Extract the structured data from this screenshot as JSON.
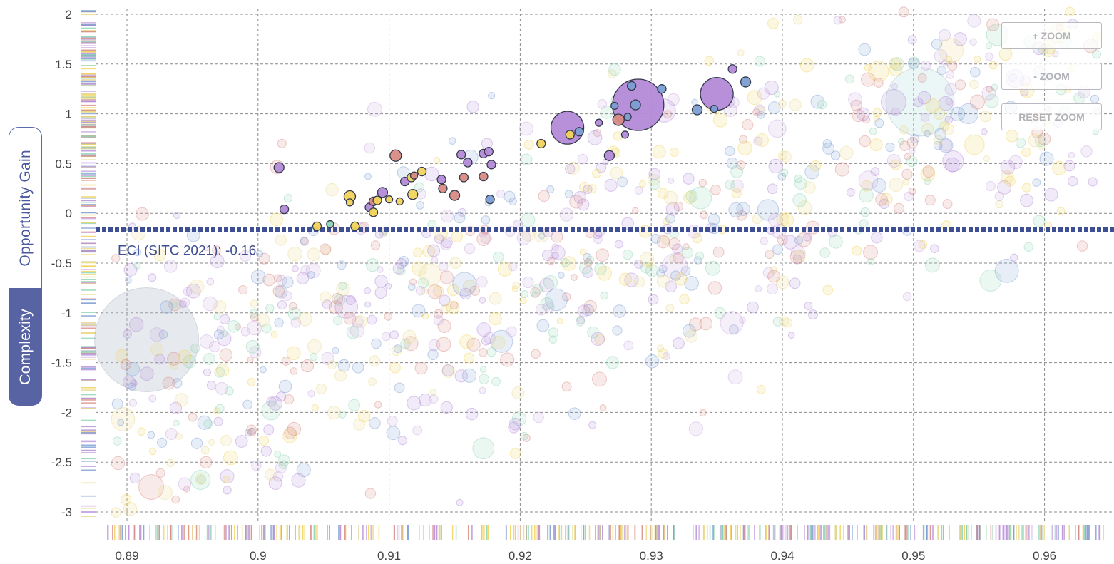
{
  "side_tabs": {
    "opportunity_gain": "Opportunity Gain",
    "complexity": "Complexity"
  },
  "zoom": {
    "zoom_in": "+ ZOOM",
    "zoom_out": "- ZOOM",
    "reset": "RESET ZOOM"
  },
  "colors": {
    "purple": "#b48ad8",
    "blue": "#7c9ed3",
    "yellow": "#f1d35a",
    "salmon": "#d88b84",
    "green": "#8ed4b4",
    "eci_line": "#3f4f93",
    "tab_active": "#5763a3"
  },
  "chart_data": {
    "type": "scatter",
    "x_ticks": [
      "0.89",
      "0.9",
      "0.91",
      "0.92",
      "0.93",
      "0.94",
      "0.95",
      "0.96"
    ],
    "y_ticks": [
      "2",
      "1.5",
      "1",
      "0.5",
      "0",
      "-0.5",
      "-1",
      "-1.5",
      "-2",
      "-2.5",
      "-3"
    ],
    "xlim": [
      0.8875,
      0.9655
    ],
    "ylim": [
      -3.1,
      2.1
    ],
    "grid": true,
    "eci_line": {
      "label": "ECI (SITC 2021): -0.16",
      "value": -0.16
    },
    "highlighted_points": [
      {
        "x": 0.9016,
        "y": 0.46,
        "size": 7,
        "color": "purple"
      },
      {
        "x": 0.902,
        "y": 0.04,
        "size": 6,
        "color": "purple"
      },
      {
        "x": 0.9045,
        "y": -0.13,
        "size": 6,
        "color": "yellow"
      },
      {
        "x": 0.9055,
        "y": -0.11,
        "size": 5,
        "color": "green"
      },
      {
        "x": 0.907,
        "y": 0.17,
        "size": 8,
        "color": "yellow"
      },
      {
        "x": 0.907,
        "y": 0.11,
        "size": 5,
        "color": "yellow"
      },
      {
        "x": 0.9074,
        "y": -0.13,
        "size": 6,
        "color": "yellow"
      },
      {
        "x": 0.9085,
        "y": 0.06,
        "size": 6,
        "color": "purple"
      },
      {
        "x": 0.9088,
        "y": 0.12,
        "size": 6,
        "color": "salmon"
      },
      {
        "x": 0.9088,
        "y": 0.01,
        "size": 6,
        "color": "yellow"
      },
      {
        "x": 0.9091,
        "y": 0.13,
        "size": 6,
        "color": "yellow"
      },
      {
        "x": 0.9095,
        "y": 0.21,
        "size": 7,
        "color": "purple"
      },
      {
        "x": 0.91,
        "y": 0.14,
        "size": 5,
        "color": "yellow"
      },
      {
        "x": 0.9105,
        "y": 0.58,
        "size": 8,
        "color": "salmon"
      },
      {
        "x": 0.9108,
        "y": 0.12,
        "size": 5,
        "color": "yellow"
      },
      {
        "x": 0.9112,
        "y": 0.32,
        "size": 6,
        "color": "purple"
      },
      {
        "x": 0.9117,
        "y": 0.36,
        "size": 6,
        "color": "yellow"
      },
      {
        "x": 0.9119,
        "y": 0.38,
        "size": 5,
        "color": "salmon"
      },
      {
        "x": 0.9118,
        "y": 0.19,
        "size": 7,
        "color": "yellow"
      },
      {
        "x": 0.9125,
        "y": 0.42,
        "size": 6,
        "color": "yellow"
      },
      {
        "x": 0.914,
        "y": 0.34,
        "size": 6,
        "color": "purple"
      },
      {
        "x": 0.9141,
        "y": 0.25,
        "size": 6,
        "color": "salmon"
      },
      {
        "x": 0.915,
        "y": 0.18,
        "size": 7,
        "color": "salmon"
      },
      {
        "x": 0.9155,
        "y": 0.59,
        "size": 6,
        "color": "purple"
      },
      {
        "x": 0.9157,
        "y": 0.36,
        "size": 6,
        "color": "salmon"
      },
      {
        "x": 0.916,
        "y": 0.51,
        "size": 6,
        "color": "purple"
      },
      {
        "x": 0.9172,
        "y": 0.37,
        "size": 6,
        "color": "salmon"
      },
      {
        "x": 0.9172,
        "y": 0.6,
        "size": 6,
        "color": "purple"
      },
      {
        "x": 0.9176,
        "y": 0.62,
        "size": 6,
        "color": "purple"
      },
      {
        "x": 0.9178,
        "y": 0.49,
        "size": 6,
        "color": "purple"
      },
      {
        "x": 0.9177,
        "y": 0.14,
        "size": 6,
        "color": "blue"
      },
      {
        "x": 0.9216,
        "y": 0.7,
        "size": 6,
        "color": "yellow"
      },
      {
        "x": 0.9236,
        "y": 0.86,
        "size": 23,
        "color": "purple"
      },
      {
        "x": 0.9238,
        "y": 0.79,
        "size": 6,
        "color": "yellow"
      },
      {
        "x": 0.9245,
        "y": 0.82,
        "size": 6,
        "color": "blue"
      },
      {
        "x": 0.926,
        "y": 0.91,
        "size": 5,
        "color": "purple"
      },
      {
        "x": 0.9268,
        "y": 0.58,
        "size": 7,
        "color": "purple"
      },
      {
        "x": 0.9272,
        "y": 1.08,
        "size": 5,
        "color": "blue"
      },
      {
        "x": 0.9275,
        "y": 0.94,
        "size": 8,
        "color": "salmon"
      },
      {
        "x": 0.928,
        "y": 0.79,
        "size": 5,
        "color": "purple"
      },
      {
        "x": 0.9282,
        "y": 0.97,
        "size": 5,
        "color": "blue"
      },
      {
        "x": 0.9285,
        "y": 1.28,
        "size": 6,
        "color": "blue"
      },
      {
        "x": 0.929,
        "y": 1.09,
        "size": 36,
        "color": "purple"
      },
      {
        "x": 0.9288,
        "y": 1.09,
        "size": 7,
        "color": "blue"
      },
      {
        "x": 0.9308,
        "y": 1.25,
        "size": 6,
        "color": "blue"
      },
      {
        "x": 0.9335,
        "y": 1.04,
        "size": 7,
        "color": "blue"
      },
      {
        "x": 0.935,
        "y": 1.2,
        "size": 23,
        "color": "purple"
      },
      {
        "x": 0.9348,
        "y": 1.05,
        "size": 5,
        "color": "blue"
      },
      {
        "x": 0.9362,
        "y": 1.45,
        "size": 6,
        "color": "purple"
      },
      {
        "x": 0.9372,
        "y": 1.32,
        "size": 7,
        "color": "blue"
      }
    ],
    "background_points_note": "",
    "big_faded_bubbles": [
      {
        "x": 0.8915,
        "y": -1.27,
        "size": 73,
        "color": "#b7c1cc"
      },
      {
        "x": 0.9505,
        "y": 1.12,
        "size": 48,
        "color": "#c6e6e6"
      }
    ]
  }
}
